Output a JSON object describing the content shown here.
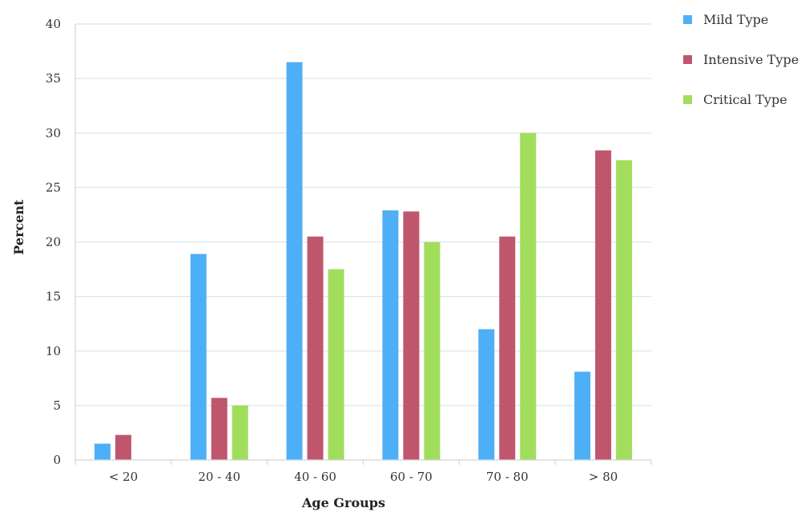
{
  "chart_data": {
    "type": "bar",
    "categories": [
      "< 20",
      "20 - 40",
      "40 - 60",
      "60 - 70",
      "70 - 80",
      "> 80"
    ],
    "series": [
      {
        "name": "Mild Type",
        "color": "#4db0f7",
        "values": [
          1.5,
          18.9,
          36.5,
          22.9,
          12.0,
          8.1
        ]
      },
      {
        "name": "Intensive Type",
        "color": "#c0566d",
        "values": [
          2.3,
          5.7,
          20.5,
          22.8,
          20.5,
          28.4
        ]
      },
      {
        "name": "Critical Type",
        "color": "#a2dd5c",
        "values": [
          0,
          5.0,
          17.5,
          20.0,
          30.0,
          27.5
        ]
      }
    ],
    "xlabel": "Age Groups",
    "ylabel": "Percent",
    "ylim": [
      0,
      40
    ],
    "yticks": [
      0,
      5,
      10,
      15,
      20,
      25,
      30,
      35,
      40
    ],
    "grid": true,
    "legend_position": "top-right"
  }
}
